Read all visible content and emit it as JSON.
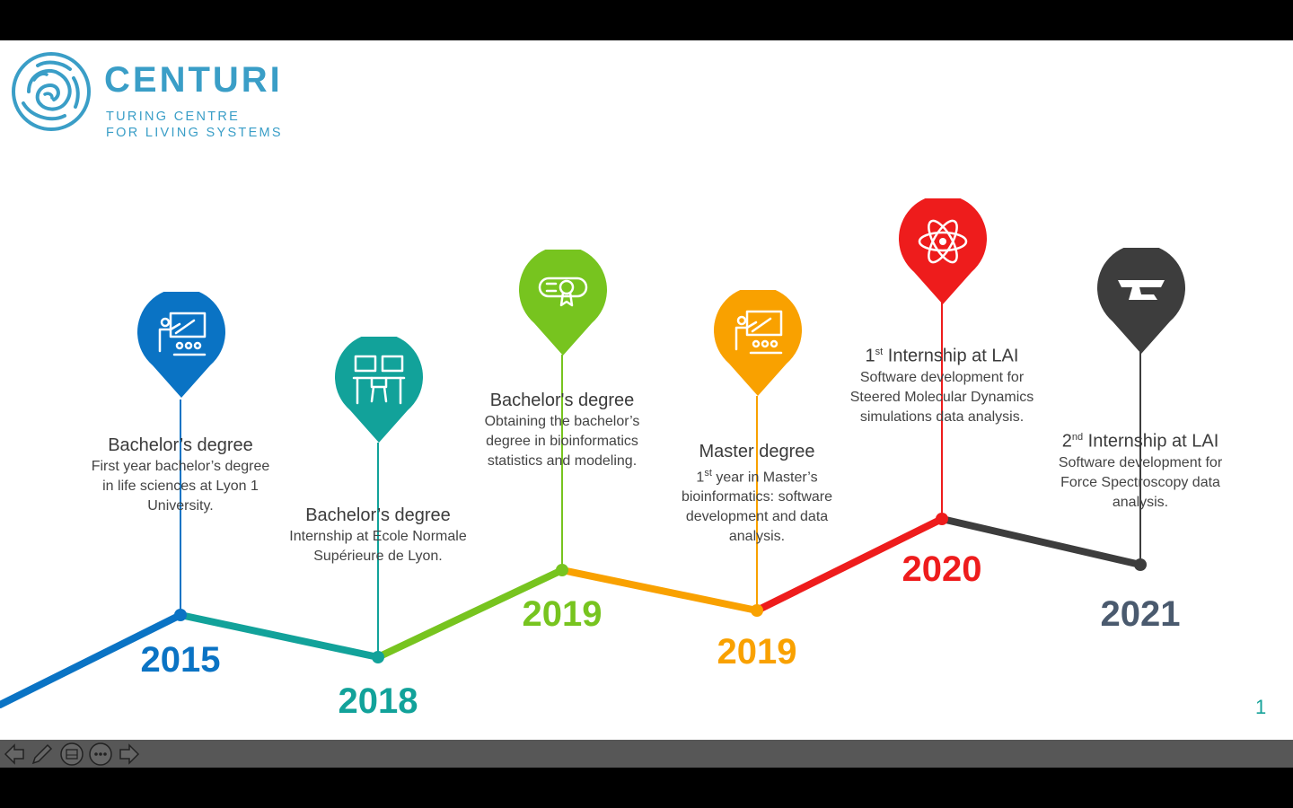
{
  "logo": {
    "name": "CENTURI",
    "tagline_line1": "TURING CENTRE",
    "tagline_line2": "FOR LIVING SYSTEMS"
  },
  "timeline": [
    {
      "color": "#0a73c4",
      "icon": "teacher-presentation-icon",
      "title": "Bachelor’s degree",
      "description": [
        "First year bachelor’s degree",
        "in life sciences at Lyon 1",
        "University."
      ],
      "year": "2015"
    },
    {
      "color": "#12a29a",
      "icon": "computer-workstation-icon",
      "title": "Bachelor’s degree",
      "description": [
        "Internship at Ecole Normale",
        "Supérieure de Lyon."
      ],
      "year": "2018"
    },
    {
      "color": "#77c41f",
      "icon": "diploma-scroll-icon",
      "title": "Bachelor's degree",
      "description": [
        "Obtaining the bachelor’s",
        "degree in bioinformatics",
        "statistics and modeling."
      ],
      "year": "2019"
    },
    {
      "color": "#f9a100",
      "icon": "teacher-presentation-icon",
      "title": "Master degree",
      "description_sup": {
        "num": "1",
        "sup": "st",
        "rest": " year in Master’s"
      },
      "description": [
        "bioinformatics: software",
        "development and data",
        "analysis."
      ],
      "year": "2019"
    },
    {
      "color": "#ee1c1c",
      "icon": "atom-icon",
      "title_sup": {
        "num": "1",
        "sup": "st",
        "rest": " Internship at LAI"
      },
      "description": [
        "Software development for",
        "Steered Molecular Dynamics",
        "simulations data analysis."
      ],
      "year": "2020"
    },
    {
      "color": "#3d3d3d",
      "year_color": "#4a5a6e",
      "icon": "microscope-stage-icon",
      "title_sup": {
        "num": "2",
        "sup": "nd",
        "rest": " Internship at LAI"
      },
      "description": [
        "Software development for",
        "Force Spectroscopy data",
        "analysis."
      ],
      "year": "2021"
    }
  ],
  "page_number": "1",
  "toolbar": {
    "buttons": [
      "previous-slide-icon",
      "pen-icon",
      "slides-grid-icon",
      "more-options-icon",
      "next-slide-icon"
    ]
  }
}
